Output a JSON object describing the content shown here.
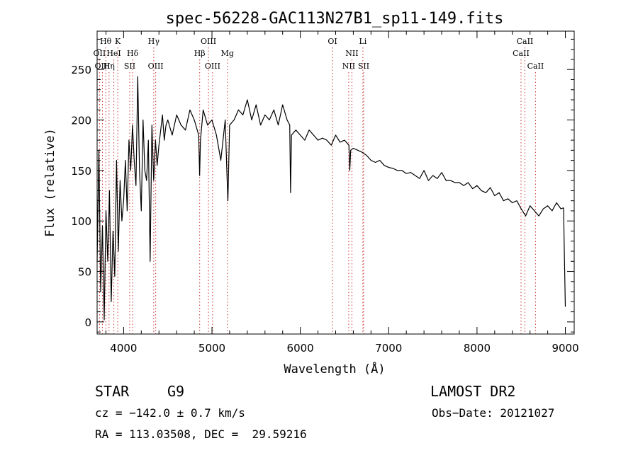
{
  "chart_data": {
    "type": "line",
    "title": "spec-56228-GAC113N27B1_sp11-149.fits",
    "xlabel": "Wavelength (Å)",
    "ylabel": "Flux (relative)",
    "xlim": [
      3700,
      9100
    ],
    "ylim": [
      -12,
      288
    ],
    "xticks": [
      4000,
      5000,
      6000,
      7000,
      8000,
      9000
    ],
    "yticks": [
      0,
      50,
      100,
      150,
      200,
      250
    ],
    "grid": false,
    "series": [
      {
        "values_x": [
          3700,
          3720,
          3740,
          3760,
          3780,
          3800,
          3820,
          3840,
          3860,
          3880,
          3900,
          3920,
          3940,
          3960,
          3980,
          4000,
          4020,
          4040,
          4060,
          4080,
          4100,
          4120,
          4140,
          4160,
          4180,
          4200,
          4220,
          4240,
          4260,
          4280,
          4300,
          4320,
          4340,
          4360,
          4380,
          4400,
          4420,
          4440,
          4460,
          4480,
          4500,
          4550,
          4600,
          4650,
          4700,
          4750,
          4800,
          4850,
          4860,
          4870,
          4900,
          4950,
          5000,
          5050,
          5100,
          5150,
          5170,
          5180,
          5200,
          5250,
          5300,
          5350,
          5400,
          5450,
          5500,
          5550,
          5600,
          5650,
          5700,
          5750,
          5800,
          5850,
          5880,
          5890,
          5900,
          5950,
          6000,
          6050,
          6100,
          6150,
          6200,
          6250,
          6300,
          6350,
          6400,
          6450,
          6500,
          6550,
          6560,
          6570,
          6600,
          6650,
          6700,
          6750,
          6800,
          6850,
          6900,
          6950,
          7000,
          7050,
          7100,
          7150,
          7200,
          7250,
          7300,
          7350,
          7400,
          7450,
          7500,
          7550,
          7600,
          7650,
          7700,
          7750,
          7800,
          7850,
          7900,
          7950,
          8000,
          8050,
          8100,
          8150,
          8200,
          8250,
          8300,
          8350,
          8400,
          8450,
          8500,
          8550,
          8600,
          8650,
          8700,
          8750,
          8800,
          8850,
          8900,
          8950,
          8980,
          8990,
          9000
        ],
        "values_y": [
          60,
          170,
          30,
          95,
          2,
          110,
          60,
          130,
          20,
          90,
          45,
          160,
          70,
          140,
          100,
          120,
          160,
          110,
          180,
          150,
          195,
          160,
          135,
          243,
          150,
          110,
          200,
          150,
          140,
          180,
          60,
          195,
          140,
          180,
          155,
          175,
          190,
          205,
          180,
          195,
          200,
          185,
          205,
          195,
          190,
          210,
          200,
          185,
          145,
          180,
          210,
          195,
          200,
          185,
          160,
          200,
          145,
          120,
          195,
          200,
          210,
          205,
          220,
          200,
          215,
          195,
          205,
          200,
          210,
          195,
          215,
          200,
          195,
          128,
          185,
          190,
          185,
          180,
          190,
          185,
          180,
          182,
          180,
          175,
          185,
          178,
          180,
          175,
          150,
          170,
          172,
          170,
          168,
          165,
          160,
          158,
          160,
          155,
          153,
          152,
          150,
          150,
          147,
          148,
          145,
          142,
          150,
          140,
          145,
          142,
          148,
          140,
          140,
          138,
          138,
          135,
          138,
          132,
          135,
          130,
          128,
          133,
          125,
          128,
          120,
          122,
          118,
          120,
          112,
          105,
          115,
          110,
          105,
          112,
          115,
          110,
          118,
          112,
          113,
          60,
          15
        ]
      }
    ],
    "lines": [
      {
        "label": "Hθ",
        "x": 3798,
        "row": 1,
        "style": "dotted"
      },
      {
        "label": "K",
        "x": 3934,
        "row": 1,
        "style": "dotted"
      },
      {
        "label": "Hγ",
        "x": 4341,
        "row": 1,
        "style": "dotted"
      },
      {
        "label": "OIII",
        "x": 4960,
        "row": 1,
        "style": "dotted"
      },
      {
        "label": "OI",
        "x": 6364,
        "row": 1,
        "style": "dotted"
      },
      {
        "label": "Li",
        "x": 6708,
        "row": 1,
        "style": "dotted"
      },
      {
        "label": "CaII",
        "x": 8542,
        "row": 1,
        "style": "dotted"
      },
      {
        "label": "OII",
        "x": 3727,
        "row": 2,
        "style": "dotted"
      },
      {
        "label": "HeI",
        "x": 3889,
        "row": 2,
        "style": "dotted"
      },
      {
        "label": "Hδ",
        "x": 4102,
        "row": 2,
        "style": "dotted"
      },
      {
        "label": "Hβ",
        "x": 4861,
        "row": 2,
        "style": "dotted"
      },
      {
        "label": "Mg",
        "x": 5175,
        "row": 2,
        "style": "dotted"
      },
      {
        "label": "NII",
        "x": 6584,
        "row": 2,
        "style": "dotted"
      },
      {
        "label": "CaII",
        "x": 8498,
        "row": 2,
        "style": "dotted"
      },
      {
        "label": "OIII",
        "x": 3760,
        "row": 3,
        "style": "dotted"
      },
      {
        "label": "Hη",
        "x": 3835,
        "row": 3,
        "style": "dotted"
      },
      {
        "label": "SII",
        "x": 4069,
        "row": 3,
        "style": "dotted"
      },
      {
        "label": "OIII",
        "x": 4363,
        "row": 3,
        "style": "dotted"
      },
      {
        "label": "OIII",
        "x": 5007,
        "row": 3,
        "style": "dotted"
      },
      {
        "label": "NII",
        "x": 6548,
        "row": 3,
        "style": "dotted"
      },
      {
        "label": "SII",
        "x": 6717,
        "row": 3,
        "style": "dotted"
      },
      {
        "label": "CaII",
        "x": 8662,
        "row": 3,
        "style": "dotted"
      }
    ]
  },
  "info": {
    "obj_class": "STAR",
    "obj_subclass": "G9",
    "release": "LAMOST DR2",
    "cz": "cz = −142.0 ± 0.7 km/s",
    "obs_date": "Obs−Date: 20121027",
    "radec": "RA = 113.03508, DEC =  29.59216"
  },
  "colors": {
    "line_marker": "#cc3333",
    "spectrum": "#000000"
  }
}
